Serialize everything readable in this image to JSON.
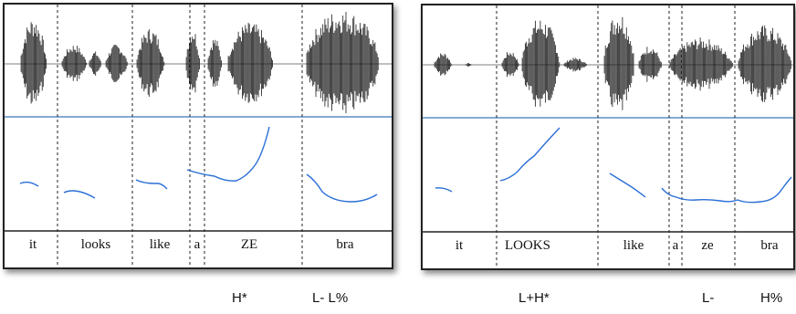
{
  "left_panel": {
    "words": [
      "it",
      "looks",
      "like",
      "a",
      "ZE",
      "bra"
    ]
  },
  "right_panel": {
    "words": [
      "it",
      "LOOKS",
      "like",
      "a",
      "ze",
      "bra"
    ]
  },
  "tones": {
    "left_h_star": "H*",
    "left_boundary": "L- L%",
    "right_accent": "L+H*",
    "right_phrase": "L-",
    "right_boundary": "H%"
  },
  "colors": {
    "pitch": "#2a6fd6",
    "separator": "#3a78b8",
    "waveform": "#1a1a1a"
  }
}
